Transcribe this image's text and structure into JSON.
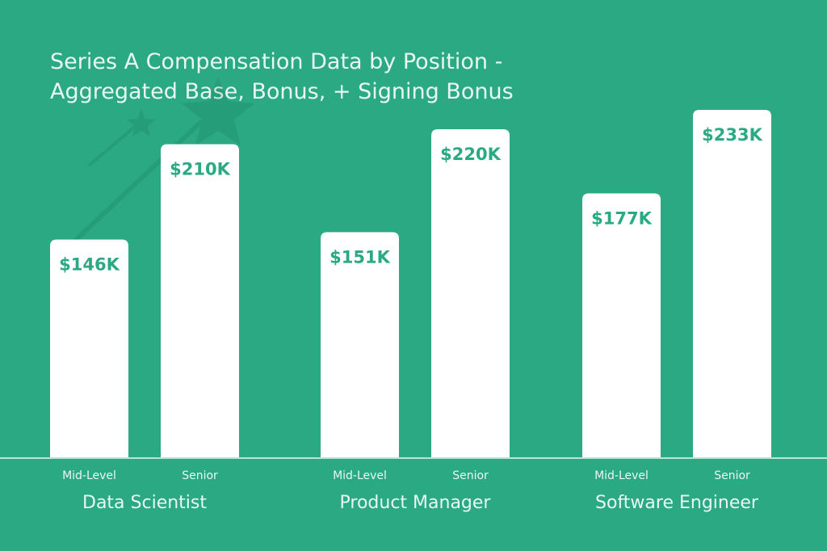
{
  "chart_data": {
    "type": "bar",
    "title": "Series A Compensation Data by Position - Aggregated Base, Bonus, + Signing Bonus",
    "categories": [
      "Data Scientist",
      "Product Manager",
      "Software Engineer"
    ],
    "series": [
      {
        "name": "Mid-Level",
        "color": "#ffffff",
        "values": [
          146,
          151,
          177
        ],
        "value_labels": [
          "$146K",
          "$151K",
          "$177K"
        ]
      },
      {
        "name": "Senior",
        "color": "#ffffff",
        "values": [
          210,
          220,
          233
        ],
        "value_labels": [
          "$210K",
          "$220K",
          "$233K"
        ]
      }
    ],
    "label_color": "#2aa983"
  }
}
